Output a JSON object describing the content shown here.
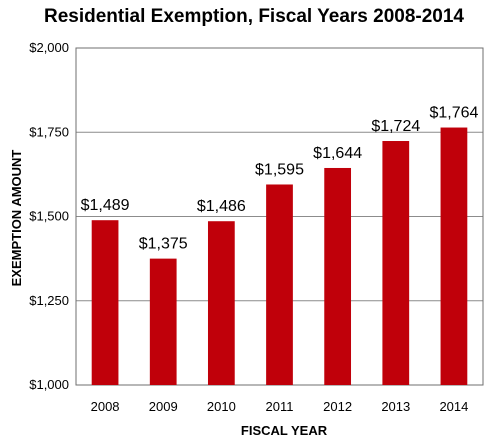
{
  "chart_data": {
    "type": "bar",
    "title": "Residential Exemption, Fiscal Years 2008-2014",
    "xlabel": "FISCAL YEAR",
    "ylabel": "EXEMPTION AMOUNT",
    "categories": [
      "2008",
      "2009",
      "2010",
      "2011",
      "2012",
      "2013",
      "2014"
    ],
    "values": [
      1489,
      1375,
      1486,
      1595,
      1644,
      1724,
      1764
    ],
    "data_labels": [
      "$1,489",
      "$1,375",
      "$1,486",
      "$1,595",
      "$1,644",
      "$1,724",
      "$1,764"
    ],
    "ylim": [
      1000,
      2000
    ],
    "yticks": [
      1000,
      1250,
      1500,
      1750,
      2000
    ],
    "ytick_labels": [
      "$1,000",
      "$1,250",
      "$1,500",
      "$1,750",
      "$2,000"
    ],
    "grid": true,
    "legend": "none",
    "bar_color": "#c0000a",
    "grid_color": "#8c8c8c",
    "frame_color": "#6f6f6f"
  }
}
